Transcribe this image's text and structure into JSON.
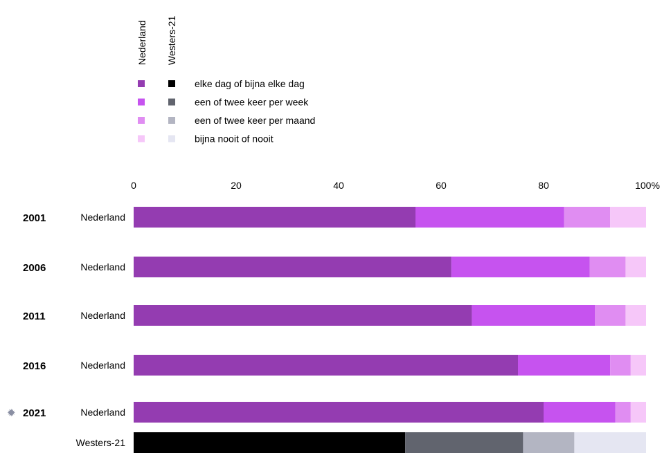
{
  "chart_data": {
    "type": "bar",
    "orientation": "horizontal",
    "stacked": true,
    "x_ticks": [
      "0",
      "20",
      "40",
      "60",
      "80",
      "100%"
    ],
    "xlim": [
      0,
      100
    ],
    "legend": {
      "column_labels": [
        "Nederland",
        "Westers-21"
      ],
      "items": [
        {
          "label": "elke dag of bijna elke dag",
          "colors": [
            "#943cb1",
            "#000000"
          ]
        },
        {
          "label": "een of twee keer per week",
          "colors": [
            "#c653ef",
            "#61646e"
          ]
        },
        {
          "label": "een of twee keer per maand",
          "colors": [
            "#e08df2",
            "#b3b5c2"
          ]
        },
        {
          "label": "bijna nooit of nooit",
          "colors": [
            "#f6c7f9",
            "#e5e6f2"
          ]
        }
      ]
    },
    "rows": [
      {
        "year": "2001",
        "group": "Nederland",
        "values": [
          55,
          29,
          9,
          7
        ]
      },
      {
        "year": "2006",
        "group": "Nederland",
        "values": [
          62,
          27,
          7,
          4
        ]
      },
      {
        "year": "2011",
        "group": "Nederland",
        "values": [
          66,
          24,
          6,
          4
        ]
      },
      {
        "year": "2016",
        "group": "Nederland",
        "values": [
          75,
          18,
          4,
          3
        ]
      },
      {
        "year": "2021",
        "group": "Nederland",
        "values": [
          80,
          14,
          3,
          3
        ],
        "marker": "sun-icon"
      },
      {
        "year": "",
        "group": "Westers-21",
        "values": [
          53,
          23,
          10,
          14
        ]
      }
    ],
    "colors": {
      "Nederland": [
        "#943cb1",
        "#c653ef",
        "#e08df2",
        "#f6c7f9"
      ],
      "Westers-21": [
        "#000000",
        "#61646e",
        "#b3b5c2",
        "#e5e6f2"
      ]
    }
  }
}
